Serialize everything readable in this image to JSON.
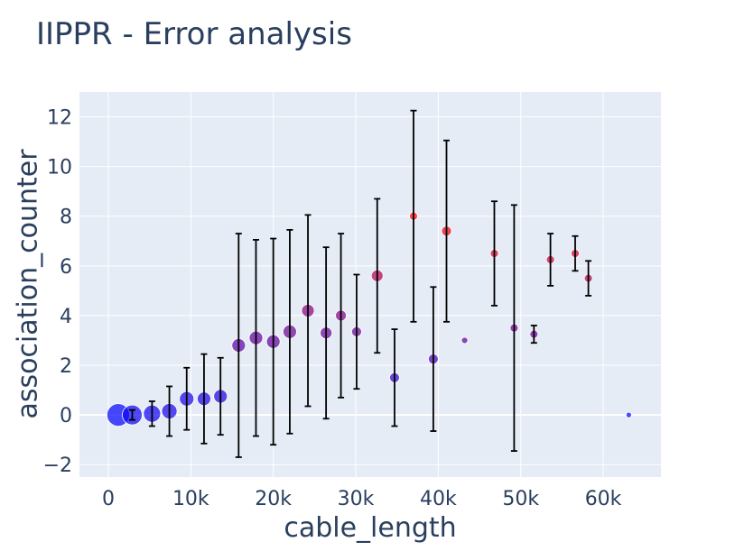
{
  "chart_data": {
    "type": "scatter",
    "title": "IIPPR - Error analysis",
    "xlabel": "cable_length",
    "ylabel": "association_counter",
    "xlim": [
      -3500,
      67000
    ],
    "ylim": [
      -2.5,
      13
    ],
    "x_ticks": [
      0,
      10000,
      20000,
      30000,
      40000,
      50000,
      60000
    ],
    "x_tick_labels": [
      "0",
      "10k",
      "20k",
      "30k",
      "40k",
      "50k",
      "60k"
    ],
    "y_ticks": [
      -2,
      0,
      2,
      4,
      6,
      8,
      10,
      12
    ],
    "y_tick_labels": [
      "−2",
      "0",
      "2",
      "4",
      "6",
      "8",
      "10",
      "12"
    ],
    "grid": true,
    "background_color": "#e5ecf6",
    "color_scale": [
      "#0000ff",
      "#ff0000"
    ],
    "points": [
      {
        "x": 1200,
        "y": 0.0,
        "err": 0.0,
        "size": 25,
        "color": "#0000ff"
      },
      {
        "x": 2900,
        "y": 0.0,
        "err": 0.2,
        "size": 22,
        "color": "#0c00f2"
      },
      {
        "x": 5300,
        "y": 0.05,
        "err": 0.5,
        "size": 19,
        "color": "#0e00f0"
      },
      {
        "x": 7400,
        "y": 0.15,
        "err": 1.0,
        "size": 17,
        "color": "#1200ec"
      },
      {
        "x": 9500,
        "y": 0.65,
        "err": 1.25,
        "size": 16,
        "color": "#1a00e4"
      },
      {
        "x": 11600,
        "y": 0.65,
        "err": 1.8,
        "size": 15,
        "color": "#1a00e4"
      },
      {
        "x": 13600,
        "y": 0.75,
        "err": 1.55,
        "size": 15,
        "color": "#1c00e2"
      },
      {
        "x": 15800,
        "y": 2.8,
        "err": 4.5,
        "size": 15,
        "color": "#5a00a4"
      },
      {
        "x": 17900,
        "y": 3.1,
        "err": 3.95,
        "size": 15,
        "color": "#6400a0"
      },
      {
        "x": 20000,
        "y": 2.95,
        "err": 4.15,
        "size": 15,
        "color": "#600098"
      },
      {
        "x": 22000,
        "y": 3.35,
        "err": 4.1,
        "size": 15,
        "color": "#6c0092"
      },
      {
        "x": 24200,
        "y": 4.2,
        "err": 3.85,
        "size": 14,
        "color": "#88007a"
      },
      {
        "x": 26400,
        "y": 3.3,
        "err": 3.45,
        "size": 13,
        "color": "#6a0094"
      },
      {
        "x": 28200,
        "y": 4.0,
        "err": 3.3,
        "size": 12,
        "color": "#820080"
      },
      {
        "x": 30100,
        "y": 3.35,
        "err": 2.3,
        "size": 11,
        "color": "#6c0092"
      },
      {
        "x": 32600,
        "y": 5.6,
        "err": 3.1,
        "size": 13,
        "color": "#b40050"
      },
      {
        "x": 34700,
        "y": 1.5,
        "err": 1.95,
        "size": 11,
        "color": "#3000ce"
      },
      {
        "x": 37000,
        "y": 8.0,
        "err": 4.25,
        "size": 9,
        "color": "#ff0000"
      },
      {
        "x": 39400,
        "y": 2.25,
        "err": 2.9,
        "size": 11,
        "color": "#4800b6"
      },
      {
        "x": 41000,
        "y": 7.4,
        "err": 3.65,
        "size": 11,
        "color": "#ee0010"
      },
      {
        "x": 43200,
        "y": 3.0,
        "err": 0.0,
        "size": 7,
        "color": "#600098"
      },
      {
        "x": 46800,
        "y": 6.5,
        "err": 2.1,
        "size": 9,
        "color": "#d2002c"
      },
      {
        "x": 49200,
        "y": 3.5,
        "err": 4.95,
        "size": 9,
        "color": "#70008e"
      },
      {
        "x": 51600,
        "y": 3.25,
        "err": 0.35,
        "size": 9,
        "color": "#680096"
      },
      {
        "x": 53600,
        "y": 6.25,
        "err": 1.05,
        "size": 9,
        "color": "#c80036"
      },
      {
        "x": 56600,
        "y": 6.5,
        "err": 0.7,
        "size": 9,
        "color": "#d2002c"
      },
      {
        "x": 58200,
        "y": 5.5,
        "err": 0.7,
        "size": 9,
        "color": "#b00050"
      },
      {
        "x": 63100,
        "y": 0.0,
        "err": 0.0,
        "size": 6,
        "color": "#0000ff"
      }
    ]
  }
}
